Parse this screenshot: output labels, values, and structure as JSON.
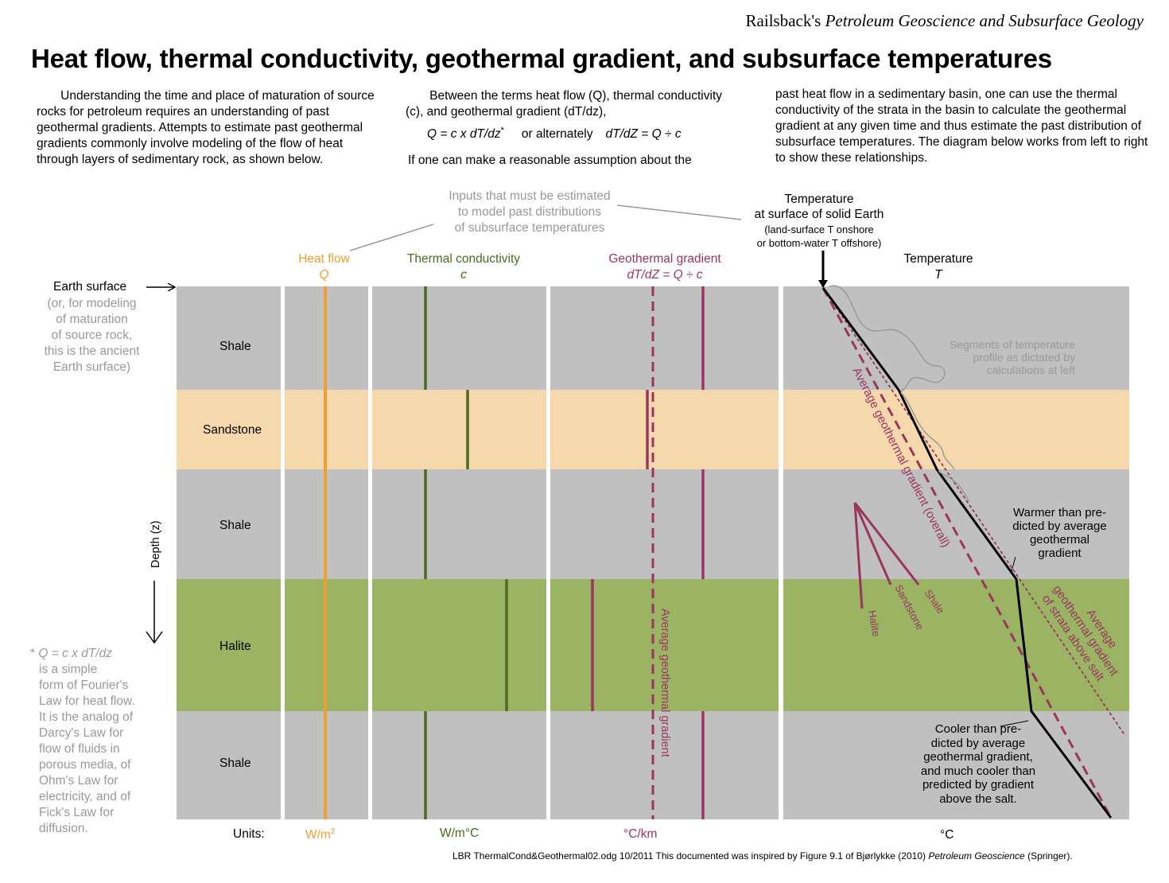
{
  "header": {
    "credit_prefix": "Railsback's ",
    "credit_book": "Petroleum Geoscience and Subsurface Geology",
    "title": "Heat flow, thermal conductivity, geothermal gradient, and subsurface temperatures"
  },
  "intro": {
    "col1": "Understanding the time and place of maturation of source rocks for petroleum requires an understanding of past geothermal gradients.  Attempts to estimate past geothermal gradients commonly involve modeling  of the flow of heat through layers of sedimentary rock, as shown below.",
    "col2": "Between the terms heat flow (Q), thermal conductivity (c), and geothermal gradient (dT/dz),",
    "equation_main": "Q = c x dT/dz",
    "equation_star": "*",
    "equation_or": "or alternately",
    "equation_alt": "dT/dZ = Q ÷ c",
    "col2_end": "If one can make a reasonable assumption about the",
    "col3": "past heat flow in a sedimentary basin,  one can use the thermal conductivity of the strata in the basin to calculate the geothermal gradient at any given time and thus estimate the past distribution of subsurface temperatures.  The diagram below works from left to right to show these relationships."
  },
  "inputs_note": [
    "Inputs that must be estimated",
    "to model past distributions",
    "of subsurface temperatures"
  ],
  "surface_temp_note": [
    "Temperature",
    "at surface of solid Earth",
    "(land-surface T onshore",
    "or bottom-water T offshore)"
  ],
  "columns": {
    "heat_flow": {
      "label": "Heat flow",
      "symbol": "Q",
      "unit": "W/m",
      "unit_sup": "2"
    },
    "conductivity": {
      "label": "Thermal conductivity",
      "symbol": "c",
      "unit": "W/m°C"
    },
    "gradient": {
      "label": "Geothermal gradient",
      "symbol": "dT/dZ = Q ÷ c",
      "unit": "°C/km"
    },
    "temperature": {
      "label": "Temperature",
      "symbol": "T",
      "unit": "°C"
    }
  },
  "units_label": "Units:",
  "earth_surface": {
    "label": "Earth surface",
    "note": [
      "(or, for modeling",
      "of maturation",
      "of source rock,",
      "this is the ancient",
      "Earth surface)"
    ]
  },
  "depth_axis_label": "Depth (z)",
  "footnote": {
    "lead": "*",
    "equation": "Q = c x dT/dz",
    "lines": [
      "is a simple",
      "form of Fourier's",
      "Law for heat flow.",
      "It is the analog of",
      "Darcy's  Law for",
      "flow of fluids in",
      "porous media, of",
      "Ohm's Law for",
      "electricity, and of",
      "Fick's Law for",
      "diffusion."
    ]
  },
  "layers": [
    {
      "name": "Shale",
      "color": "#c0c0c0"
    },
    {
      "name": "Sandstone",
      "color": "#f5d8ac"
    },
    {
      "name": "Shale",
      "color": "#c0c0c0"
    },
    {
      "name": "Halite",
      "color": "#9ab464"
    },
    {
      "name": "Shale",
      "color": "#c0c0c0"
    }
  ],
  "annotations": {
    "avg_gradient_vertical": "Average geothermal gradient",
    "avg_gradient_overall": "Average geothermal gradient (overall)",
    "avg_gradient_above_salt": [
      "Average",
      "geothermal gradient",
      "of strata above salt"
    ],
    "segments_note": [
      "Segments of temperature",
      "profile as dictated by",
      "calculations at left"
    ],
    "warmer_note": [
      "Warmer than pre-",
      "dicted by average",
      "geothermal",
      "gradient"
    ],
    "cooler_note": [
      "Cooler than pre-",
      "dicted by average",
      "geothermal gradient,",
      "and much cooler than",
      "predicted by gradient",
      "above the salt."
    ],
    "fan_labels": [
      "Halite",
      "Sandstone",
      "Shale"
    ]
  },
  "footer": {
    "text": "LBR   ThermalCond&Geothermal02.odg   10/2011  This documented was inspired by Figure 9.1 of Bjørlykke (2010) ",
    "book": "Petroleum Geoscience",
    "publisher": " (Springer)."
  },
  "colors": {
    "heat_flow": "#f0a030",
    "conductivity": "#4e6a22",
    "gradient": "#9b3560",
    "temperature_line": "#000000",
    "gray_text": "#999999"
  }
}
